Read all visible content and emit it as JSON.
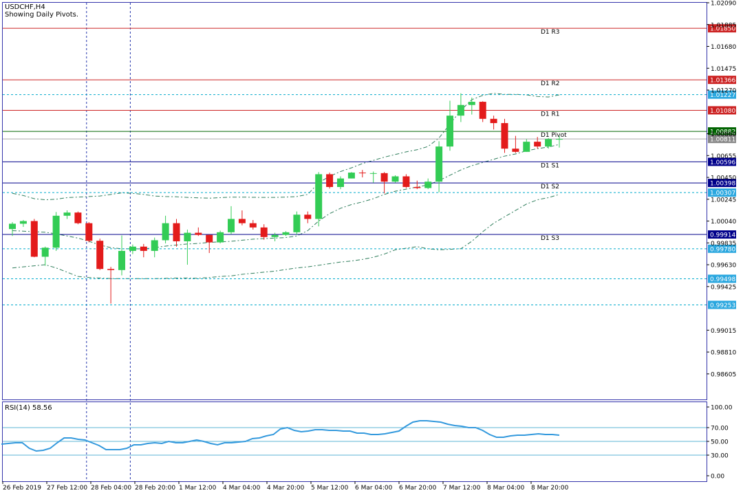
{
  "header": {
    "symbol": "USDCHF,H4",
    "subtitle": "Showing Daily Pivots."
  },
  "colors": {
    "bull": "#33cc55",
    "bear": "#e31b1b",
    "frame": "#3333aa",
    "resistance": "#cc2222",
    "support": "#00008b",
    "pivot": "#006400",
    "bands": "#2e7d5b",
    "dashed": "#00aacc",
    "rsi": "#3399dd",
    "current": "#888888"
  },
  "chart_data": [
    {
      "type": "candlestick",
      "title": "USDCHF,H4",
      "ylim": [
        0.9846,
        1.0209
      ],
      "y_ticks": [
        "1.02090",
        "1.01885",
        "1.01680",
        "1.01475",
        "1.01270",
        "1.00860",
        "1.00655",
        "1.00450",
        "1.00245",
        "1.00040",
        "0.99835",
        "0.99630",
        "0.99425",
        "0.99015",
        "0.98810",
        "0.98605"
      ],
      "x_tick_labels": [
        "26 Feb 2019",
        "27 Feb 12:00",
        "28 Feb 04:00",
        "28 Feb 20:00",
        "1 Mar 12:00",
        "4 Mar 04:00",
        "4 Mar 20:00",
        "5 Mar 12:00",
        "6 Mar 04:00",
        "6 Mar 20:00",
        "7 Mar 12:00",
        "8 Mar 04:00",
        "8 Mar 20:00"
      ],
      "candles": [
        {
          "o": 0.99965,
          "h": 1.0003,
          "l": 0.999,
          "c": 1.00015
        },
        {
          "o": 1.00015,
          "h": 1.0005,
          "l": 0.99985,
          "c": 1.0004
        },
        {
          "o": 1.0004,
          "h": 1.0006,
          "l": 0.997,
          "c": 0.99705
        },
        {
          "o": 0.99705,
          "h": 0.998,
          "l": 0.9962,
          "c": 0.9979
        },
        {
          "o": 0.9979,
          "h": 1.00125,
          "l": 0.9976,
          "c": 1.0009
        },
        {
          "o": 1.0009,
          "h": 1.0014,
          "l": 1.0006,
          "c": 1.0012
        },
        {
          "o": 1.0012,
          "h": 1.0013,
          "l": 1.0001,
          "c": 1.0002
        },
        {
          "o": 1.0002,
          "h": 1.0003,
          "l": 0.9984,
          "c": 0.99855
        },
        {
          "o": 0.99855,
          "h": 0.99875,
          "l": 0.9958,
          "c": 0.9959
        },
        {
          "o": 0.9959,
          "h": 0.9961,
          "l": 0.99265,
          "c": 0.9958
        },
        {
          "o": 0.9958,
          "h": 0.99905,
          "l": 0.9953,
          "c": 0.9976
        },
        {
          "o": 0.9976,
          "h": 0.9982,
          "l": 0.9973,
          "c": 0.998
        },
        {
          "o": 0.998,
          "h": 0.99825,
          "l": 0.997,
          "c": 0.9976
        },
        {
          "o": 0.9976,
          "h": 0.99885,
          "l": 0.997,
          "c": 0.9986
        },
        {
          "o": 0.9986,
          "h": 1.0009,
          "l": 0.9983,
          "c": 1.0002
        },
        {
          "o": 1.0002,
          "h": 1.0006,
          "l": 0.998,
          "c": 0.9985
        },
        {
          "o": 0.9985,
          "h": 0.9996,
          "l": 0.9963,
          "c": 0.9993
        },
        {
          "o": 0.9993,
          "h": 0.9998,
          "l": 0.999,
          "c": 0.9991
        },
        {
          "o": 0.9991,
          "h": 0.99915,
          "l": 0.9974,
          "c": 0.9984
        },
        {
          "o": 0.9984,
          "h": 0.9995,
          "l": 0.9983,
          "c": 0.99935
        },
        {
          "o": 0.99935,
          "h": 1.0018,
          "l": 0.99915,
          "c": 1.0006
        },
        {
          "o": 1.0006,
          "h": 1.0014,
          "l": 1.0,
          "c": 1.0002
        },
        {
          "o": 1.0002,
          "h": 1.0005,
          "l": 0.9996,
          "c": 0.9998
        },
        {
          "o": 0.9998,
          "h": 1.0001,
          "l": 0.99865,
          "c": 0.9989
        },
        {
          "o": 0.9989,
          "h": 0.9993,
          "l": 0.9985,
          "c": 0.9991
        },
        {
          "o": 0.9991,
          "h": 0.99945,
          "l": 0.999,
          "c": 0.99935
        },
        {
          "o": 0.99935,
          "h": 1.0013,
          "l": 0.99915,
          "c": 1.001
        },
        {
          "o": 1.001,
          "h": 1.0013,
          "l": 1.0002,
          "c": 1.0006
        },
        {
          "o": 1.0006,
          "h": 1.005,
          "l": 0.9999,
          "c": 1.0048
        },
        {
          "o": 1.0048,
          "h": 1.00495,
          "l": 1.00345,
          "c": 1.0036
        },
        {
          "o": 1.0036,
          "h": 1.0046,
          "l": 1.0034,
          "c": 1.0044
        },
        {
          "o": 1.0044,
          "h": 1.005,
          "l": 1.0044,
          "c": 1.00495
        },
        {
          "o": 1.00495,
          "h": 1.0052,
          "l": 1.0045,
          "c": 1.0049
        },
        {
          "o": 1.0049,
          "h": 1.00505,
          "l": 1.004,
          "c": 1.0049
        },
        {
          "o": 1.0049,
          "h": 1.005,
          "l": 1.003,
          "c": 1.0041
        },
        {
          "o": 1.0041,
          "h": 1.0047,
          "l": 1.004,
          "c": 1.0046
        },
        {
          "o": 1.0046,
          "h": 1.0048,
          "l": 1.0035,
          "c": 1.0036
        },
        {
          "o": 1.0036,
          "h": 1.0042,
          "l": 1.0034,
          "c": 1.0035
        },
        {
          "o": 1.0035,
          "h": 1.0044,
          "l": 1.0034,
          "c": 1.0041
        },
        {
          "o": 1.0041,
          "h": 1.0079,
          "l": 1.0031,
          "c": 1.0074
        },
        {
          "o": 1.0074,
          "h": 1.0117,
          "l": 1.007,
          "c": 1.0103
        },
        {
          "o": 1.0103,
          "h": 1.0124,
          "l": 1.0097,
          "c": 1.0113
        },
        {
          "o": 1.0113,
          "h": 1.012,
          "l": 1.0104,
          "c": 1.0116
        },
        {
          "o": 1.0116,
          "h": 1.01165,
          "l": 1.0097,
          "c": 1.01
        },
        {
          "o": 1.01,
          "h": 1.0103,
          "l": 1.009,
          "c": 1.0096
        },
        {
          "o": 1.0096,
          "h": 1.01,
          "l": 1.0068,
          "c": 1.0072
        },
        {
          "o": 1.0072,
          "h": 1.0084,
          "l": 1.0068,
          "c": 1.0069
        },
        {
          "o": 1.0069,
          "h": 1.0081,
          "l": 1.0069,
          "c": 1.00785
        },
        {
          "o": 1.00785,
          "h": 1.0083,
          "l": 1.0072,
          "c": 1.0074
        },
        {
          "o": 1.0074,
          "h": 1.0082,
          "l": 1.0072,
          "c": 1.0081
        },
        {
          "o": 1.0081,
          "h": 1.0084,
          "l": 1.0073,
          "c": 1.00811
        }
      ],
      "bands": {
        "upper": [
          1.003,
          1.0028,
          1.0025,
          1.0024,
          1.00245,
          1.0026,
          1.00265,
          1.0027,
          1.00275,
          1.0029,
          1.00305,
          1.003,
          1.0029,
          1.00275,
          1.0027,
          1.00268,
          1.00262,
          1.00258,
          1.00255,
          1.0026,
          1.00265,
          1.00265,
          1.00263,
          1.00262,
          1.00262,
          1.00265,
          1.0027,
          1.0029,
          1.004,
          1.0046,
          1.00505,
          1.0054,
          1.0058,
          1.0061,
          1.0064,
          1.00665,
          1.0069,
          1.0071,
          1.0074,
          1.0082,
          1.0095,
          1.0108,
          1.0118,
          1.0122,
          1.0124,
          1.0123,
          1.0123,
          1.01225,
          1.0121,
          1.01205,
          1.01225
        ],
        "middle": [
          0.9995,
          0.99945,
          0.9994,
          0.99935,
          0.9992,
          0.999,
          0.9988,
          0.9985,
          0.99815,
          0.9979,
          0.9978,
          0.9978,
          0.99778,
          0.9979,
          0.99805,
          0.99815,
          0.99825,
          0.9983,
          0.9984,
          0.99845,
          0.9985,
          0.9986,
          0.9987,
          0.99875,
          0.9988,
          0.99885,
          0.999,
          0.9995,
          1.0004,
          1.0011,
          1.0016,
          1.00195,
          1.0022,
          1.0025,
          1.0029,
          1.0032,
          1.0034,
          1.0036,
          1.0038,
          1.0042,
          1.0047,
          1.0052,
          1.0056,
          1.0059,
          1.0062,
          1.0065,
          1.0067,
          1.007,
          1.0072,
          1.00735,
          1.0076
        ],
        "lower": [
          0.996,
          0.9961,
          0.9962,
          0.9963,
          0.996,
          0.9956,
          0.9952,
          0.9951,
          0.99505,
          0.995,
          0.995,
          0.995,
          0.995,
          0.995,
          0.99502,
          0.99505,
          0.99505,
          0.99503,
          0.9951,
          0.9952,
          0.99525,
          0.9954,
          0.9955,
          0.9956,
          0.9957,
          0.99585,
          0.996,
          0.9961,
          0.99625,
          0.9964,
          0.99655,
          0.99665,
          0.9968,
          0.997,
          0.9973,
          0.9977,
          0.99785,
          0.998,
          0.9978,
          0.9977,
          0.99775,
          0.9978,
          0.9985,
          0.9994,
          1.0002,
          1.0008,
          1.0014,
          1.002,
          1.0024,
          1.0026,
          1.0029
        ]
      },
      "levels": [
        {
          "name": "D1 R3",
          "value": "1.01850",
          "kind": "resistance"
        },
        {
          "name": "D1 R2",
          "value": "1.01366",
          "kind": "resistance"
        },
        {
          "name": "D1 R1",
          "value": "1.01080",
          "kind": "resistance"
        },
        {
          "name": "D1 Pivot",
          "value": "1.00882",
          "kind": "pivot"
        },
        {
          "name": "D1 S1",
          "value": "1.00596",
          "kind": "support"
        },
        {
          "name": "D1 S2",
          "value": "1.00398",
          "kind": "support"
        },
        {
          "name": "D1 S3",
          "value": "0.99914",
          "kind": "support"
        }
      ],
      "dashed_levels": [
        "1.01227",
        "1.00307",
        "0.99780",
        "0.99498",
        "0.99253"
      ],
      "current_price": "1.00811",
      "vertical_markers": [
        6.78,
        10.78
      ]
    },
    {
      "type": "line",
      "title": "RSI(14) 58.56",
      "ylim": [
        0,
        100
      ],
      "y_ticks": [
        "100.00",
        "70.00",
        "50.00",
        "30.00",
        "0.00"
      ],
      "levels": [
        70,
        50,
        30
      ],
      "values": [
        46,
        47,
        48,
        48,
        40,
        36,
        37,
        40,
        48,
        55,
        55,
        53,
        52,
        48,
        44,
        38,
        38,
        38,
        40,
        45,
        45,
        47,
        48,
        47,
        50,
        48,
        48,
        50,
        52,
        50,
        47,
        45,
        48,
        48,
        49,
        50,
        54,
        55,
        58,
        60,
        68,
        70,
        66,
        64,
        65,
        67,
        67,
        66,
        66,
        65,
        65,
        62,
        62,
        60,
        60,
        61,
        63,
        65,
        72,
        78,
        80,
        80,
        79,
        78,
        75,
        73,
        72,
        70,
        70,
        66,
        60,
        56,
        56,
        58,
        59,
        59,
        60,
        61,
        60,
        60,
        59
      ]
    }
  ]
}
